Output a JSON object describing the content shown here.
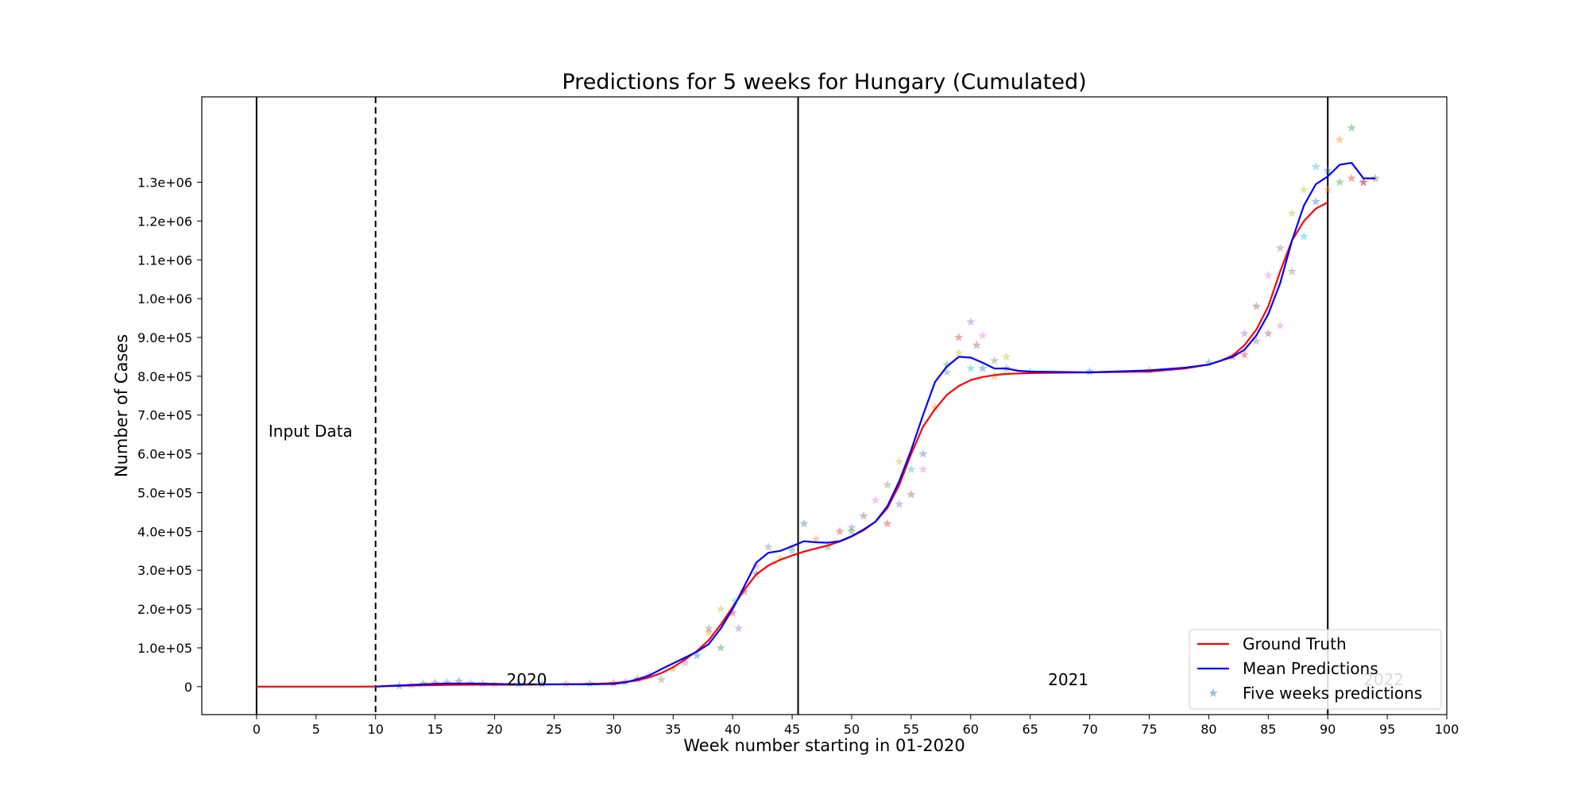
{
  "chart_data": {
    "type": "line",
    "title": "Predictions for 5 weeks for Hungary (Cumulated)",
    "xlabel": "Week number starting in 01-2020",
    "ylabel": "Number of Cases",
    "xlim": [
      -4.6,
      100
    ],
    "ylim": [
      -72000,
      1520000
    ],
    "x_ticks": [
      0,
      5,
      10,
      15,
      20,
      25,
      30,
      35,
      40,
      45,
      50,
      55,
      60,
      65,
      70,
      75,
      80,
      85,
      90,
      95,
      100
    ],
    "y_ticks": [
      {
        "value": 0,
        "label": "0"
      },
      {
        "value": 100000,
        "label": "1.0e+05"
      },
      {
        "value": 200000,
        "label": "2.0e+05"
      },
      {
        "value": 300000,
        "label": "3.0e+05"
      },
      {
        "value": 400000,
        "label": "4.0e+05"
      },
      {
        "value": 500000,
        "label": "5.0e+05"
      },
      {
        "value": 600000,
        "label": "6.0e+05"
      },
      {
        "value": 700000,
        "label": "7.0e+05"
      },
      {
        "value": 800000,
        "label": "8.0e+05"
      },
      {
        "value": 900000,
        "label": "9.0e+05"
      },
      {
        "value": 1000000,
        "label": "1.0e+06"
      },
      {
        "value": 1100000,
        "label": "1.1e+06"
      },
      {
        "value": 1200000,
        "label": "1.2e+06"
      },
      {
        "value": 1300000,
        "label": "1.3e+06"
      }
    ],
    "vertical_lines": [
      {
        "x": 0,
        "style": "solid"
      },
      {
        "x": 10,
        "style": "dashed"
      },
      {
        "x": 45.5,
        "style": "solid"
      },
      {
        "x": 90,
        "style": "solid"
      }
    ],
    "annotations": [
      {
        "text": "Input Data",
        "x": 1,
        "y": 640000
      },
      {
        "text": "2020",
        "x": 21,
        "y": 0
      },
      {
        "text": "2021",
        "x": 66.5,
        "y": 0
      },
      {
        "text": "2022",
        "x": 93,
        "y": 0
      }
    ],
    "legend": {
      "location": "lower right",
      "entries": [
        "Ground Truth",
        "Mean Predictions",
        "Five weeks predictions"
      ]
    },
    "series": [
      {
        "name": "Ground Truth",
        "color": "#ff0000",
        "x": [
          0,
          2,
          4,
          6,
          8,
          10,
          12,
          14,
          16,
          18,
          20,
          22,
          24,
          26,
          28,
          30,
          31,
          32,
          33,
          34,
          35,
          36,
          37,
          38,
          39,
          40,
          41,
          42,
          43,
          44,
          45,
          46,
          47,
          48,
          49,
          50,
          51,
          52,
          53,
          54,
          55,
          56,
          57,
          58,
          59,
          60,
          61,
          62,
          63,
          65,
          70,
          75,
          78,
          80,
          81,
          82,
          83,
          84,
          85,
          86,
          87,
          88,
          89,
          90
        ],
        "y": [
          0,
          0,
          0,
          0,
          100,
          500,
          2000,
          3500,
          4500,
          5000,
          5000,
          5000,
          5500,
          6000,
          7000,
          9000,
          12000,
          16000,
          24000,
          35000,
          50000,
          70000,
          92000,
          120000,
          160000,
          205000,
          250000,
          290000,
          312000,
          327000,
          338000,
          348000,
          356000,
          364000,
          374000,
          387000,
          403000,
          425000,
          460000,
          520000,
          600000,
          670000,
          715000,
          752000,
          775000,
          790000,
          798000,
          803000,
          806000,
          808000,
          810000,
          812000,
          820000,
          830000,
          840000,
          853000,
          880000,
          920000,
          980000,
          1070000,
          1150000,
          1200000,
          1232000,
          1248000
        ]
      },
      {
        "name": "Mean Predictions",
        "color": "#0000ff",
        "x": [
          10,
          11,
          12,
          14,
          16,
          18,
          20,
          22,
          24,
          26,
          28,
          30,
          31,
          32,
          33,
          34,
          35,
          36,
          37,
          38,
          39,
          40,
          41,
          42,
          43,
          44,
          45,
          46,
          47,
          48,
          49,
          50,
          51,
          52,
          53,
          54,
          55,
          56,
          57,
          58,
          59,
          60,
          61,
          62,
          63,
          64,
          65,
          70,
          75,
          78,
          80,
          81,
          82,
          83,
          84,
          85,
          86,
          87,
          88,
          89,
          90,
          91,
          92,
          93,
          94
        ],
        "y": [
          0,
          2000,
          3000,
          6000,
          8000,
          8000,
          7000,
          6000,
          6000,
          6000,
          6000,
          7000,
          11000,
          19000,
          29000,
          45000,
          60000,
          75000,
          90000,
          110000,
          150000,
          200000,
          260000,
          320000,
          345000,
          350000,
          362000,
          375000,
          372000,
          371000,
          375000,
          388000,
          405000,
          425000,
          465000,
          530000,
          610000,
          700000,
          785000,
          825000,
          850000,
          848000,
          835000,
          820000,
          820000,
          814000,
          812000,
          810000,
          815000,
          822000,
          830000,
          840000,
          850000,
          868000,
          905000,
          960000,
          1040000,
          1150000,
          1240000,
          1295000,
          1315000,
          1345000,
          1350000,
          1310000,
          1310000
        ]
      },
      {
        "name": "Five weeks predictions",
        "marker": "star",
        "x": [
          12,
          13,
          14,
          15,
          16,
          17,
          18,
          19,
          20,
          22,
          24,
          26,
          28,
          30,
          31,
          32,
          33,
          34,
          35,
          36,
          37,
          38,
          39,
          40,
          40.5,
          41,
          42,
          43,
          44,
          45,
          46,
          47,
          48,
          49,
          50,
          51,
          52,
          53,
          54,
          55,
          56,
          57,
          58,
          59,
          60,
          60.5,
          61,
          62,
          63,
          65,
          70,
          75,
          80,
          82,
          83,
          84,
          85,
          86,
          87,
          88,
          89,
          90,
          91,
          92,
          93,
          94,
          36,
          38,
          39,
          40.2,
          42,
          45,
          50,
          53,
          54,
          55,
          56,
          58,
          59,
          60,
          61,
          62,
          63,
          83,
          84,
          85,
          86,
          87,
          88,
          89,
          90,
          91,
          92,
          93
        ],
        "y": [
          2000,
          4000,
          8000,
          9000,
          11000,
          14000,
          10000,
          8000,
          6000,
          6000,
          7000,
          7000,
          8000,
          9000,
          12000,
          20000,
          30000,
          18000,
          45000,
          70000,
          80000,
          140000,
          100000,
          190000,
          150000,
          245000,
          310000,
          360000,
          330000,
          350000,
          420000,
          380000,
          360000,
          400000,
          410000,
          440000,
          480000,
          520000,
          580000,
          560000,
          600000,
          720000,
          830000,
          900000,
          940000,
          880000,
          905000,
          840000,
          850000,
          812000,
          812000,
          815000,
          835000,
          850000,
          910000,
          980000,
          1060000,
          1130000,
          1220000,
          1160000,
          1250000,
          1280000,
          1300000,
          1310000,
          1300000,
          1310000,
          60000,
          150000,
          200000,
          220000,
          290000,
          360000,
          400000,
          420000,
          470000,
          495000,
          560000,
          810000,
          860000,
          820000,
          820000,
          800000,
          820000,
          855000,
          890000,
          910000,
          930000,
          1070000,
          1280000,
          1340000,
          1330000,
          1410000,
          1440000,
          1300000
        ]
      }
    ],
    "colors": {
      "star_palette": [
        "#1f77b4",
        "#ff7f0e",
        "#2ca02c",
        "#d62728",
        "#9467bd",
        "#8c564b",
        "#e377c2",
        "#7f7f7f",
        "#bcbd22",
        "#17becf"
      ]
    }
  }
}
